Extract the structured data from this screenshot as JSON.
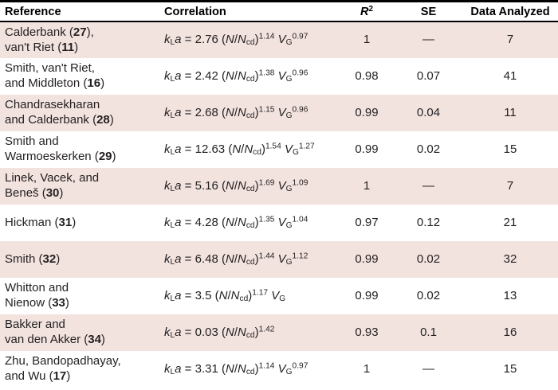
{
  "colors": {
    "row_shade": "#f2e3df",
    "rule": "#000000",
    "text": "#231f20"
  },
  "table": {
    "headers": {
      "reference": "Reference",
      "correlation": "Correlation",
      "r2": [
        [
          "i",
          "R"
        ],
        [
          "sup",
          "2"
        ]
      ],
      "se": "SE",
      "n": "Data Analyzed"
    },
    "rows": [
      {
        "reference": [
          [
            "t",
            "Calderbank ("
          ],
          [
            "b",
            "27"
          ],
          [
            "t",
            "),"
          ],
          [
            "br",
            ""
          ],
          [
            "t",
            "van't Riet ("
          ],
          [
            "b",
            "11"
          ],
          [
            "t",
            ")"
          ]
        ],
        "correlation": [
          [
            "i",
            "k"
          ],
          [
            "sub",
            "L"
          ],
          [
            "i",
            "a"
          ],
          [
            "t",
            " = 2.76 ("
          ],
          [
            "i",
            "N"
          ],
          [
            "t",
            "/"
          ],
          [
            "i",
            "N"
          ],
          [
            "sub",
            "cd"
          ],
          [
            "t",
            ")"
          ],
          [
            "sup",
            "1.14"
          ],
          [
            "t",
            " "
          ],
          [
            "i",
            "V"
          ],
          [
            "sub",
            "G"
          ],
          [
            "sup",
            "0.97"
          ]
        ],
        "r2": "1",
        "se": "—",
        "n": "7"
      },
      {
        "reference": [
          [
            "t",
            "Smith, van't Riet,"
          ],
          [
            "br",
            ""
          ],
          [
            "t",
            "and Middleton ("
          ],
          [
            "b",
            "16"
          ],
          [
            "t",
            ")"
          ]
        ],
        "correlation": [
          [
            "i",
            "k"
          ],
          [
            "sub",
            "L"
          ],
          [
            "i",
            "a"
          ],
          [
            "t",
            " = 2.42 ("
          ],
          [
            "i",
            "N"
          ],
          [
            "t",
            "/"
          ],
          [
            "i",
            "N"
          ],
          [
            "sub",
            "cd"
          ],
          [
            "t",
            ")"
          ],
          [
            "sup",
            "1.38"
          ],
          [
            "t",
            " "
          ],
          [
            "i",
            "V"
          ],
          [
            "sub",
            "G"
          ],
          [
            "sup",
            "0.96"
          ]
        ],
        "r2": "0.98",
        "se": "0.07",
        "n": "41"
      },
      {
        "reference": [
          [
            "t",
            "Chandrasekharan"
          ],
          [
            "br",
            ""
          ],
          [
            "t",
            "and Calderbank ("
          ],
          [
            "b",
            "28"
          ],
          [
            "t",
            ")"
          ]
        ],
        "correlation": [
          [
            "i",
            "k"
          ],
          [
            "sub",
            "L"
          ],
          [
            "i",
            "a"
          ],
          [
            "t",
            " = 2.68 ("
          ],
          [
            "i",
            "N"
          ],
          [
            "t",
            "/"
          ],
          [
            "i",
            "N"
          ],
          [
            "sub",
            "cd"
          ],
          [
            "t",
            ")"
          ],
          [
            "sup",
            "1.15"
          ],
          [
            "t",
            " "
          ],
          [
            "i",
            "V"
          ],
          [
            "sub",
            "G"
          ],
          [
            "sup",
            "0.96"
          ]
        ],
        "r2": "0.99",
        "se": "0.04",
        "n": "11"
      },
      {
        "reference": [
          [
            "t",
            "Smith and"
          ],
          [
            "br",
            ""
          ],
          [
            "t",
            "Warmoeskerken ("
          ],
          [
            "b",
            "29"
          ],
          [
            "t",
            ")"
          ]
        ],
        "correlation": [
          [
            "i",
            "k"
          ],
          [
            "sub",
            "L"
          ],
          [
            "i",
            "a"
          ],
          [
            "t",
            " = 12.63 ("
          ],
          [
            "i",
            "N"
          ],
          [
            "t",
            "/"
          ],
          [
            "i",
            "N"
          ],
          [
            "sub",
            "cd"
          ],
          [
            "t",
            ")"
          ],
          [
            "sup",
            "1.54"
          ],
          [
            "t",
            " "
          ],
          [
            "i",
            "V"
          ],
          [
            "sub",
            "G"
          ],
          [
            "sup",
            "1.27"
          ]
        ],
        "r2": "0.99",
        "se": "0.02",
        "n": "15"
      },
      {
        "reference": [
          [
            "t",
            "Linek, Vacek, and"
          ],
          [
            "br",
            ""
          ],
          [
            "t",
            "Beneš ("
          ],
          [
            "b",
            "30"
          ],
          [
            "t",
            ")"
          ]
        ],
        "correlation": [
          [
            "i",
            "k"
          ],
          [
            "sub",
            "L"
          ],
          [
            "i",
            "a"
          ],
          [
            "t",
            " = 5.16 ("
          ],
          [
            "i",
            "N"
          ],
          [
            "t",
            "/"
          ],
          [
            "i",
            "N"
          ],
          [
            "sub",
            "cd"
          ],
          [
            "t",
            ")"
          ],
          [
            "sup",
            "1.69"
          ],
          [
            "t",
            " "
          ],
          [
            "i",
            "V"
          ],
          [
            "sub",
            "G"
          ],
          [
            "sup",
            "1.09"
          ]
        ],
        "r2": "1",
        "se": "—",
        "n": "7"
      },
      {
        "reference": [
          [
            "t",
            "Hickman ("
          ],
          [
            "b",
            "31"
          ],
          [
            "t",
            ")"
          ]
        ],
        "correlation": [
          [
            "i",
            "k"
          ],
          [
            "sub",
            "L"
          ],
          [
            "i",
            "a"
          ],
          [
            "t",
            " = 4.28 ("
          ],
          [
            "i",
            "N"
          ],
          [
            "t",
            "/"
          ],
          [
            "i",
            "N"
          ],
          [
            "sub",
            "cd"
          ],
          [
            "t",
            ")"
          ],
          [
            "sup",
            "1.35"
          ],
          [
            "t",
            " "
          ],
          [
            "i",
            "V"
          ],
          [
            "sub",
            "G"
          ],
          [
            "sup",
            "1.04"
          ]
        ],
        "r2": "0.97",
        "se": "0.12",
        "n": "21"
      },
      {
        "reference": [
          [
            "t",
            "Smith ("
          ],
          [
            "b",
            "32"
          ],
          [
            "t",
            ")"
          ]
        ],
        "correlation": [
          [
            "i",
            "k"
          ],
          [
            "sub",
            "L"
          ],
          [
            "i",
            "a"
          ],
          [
            "t",
            " = 6.48 ("
          ],
          [
            "i",
            "N"
          ],
          [
            "t",
            "/"
          ],
          [
            "i",
            "N"
          ],
          [
            "sub",
            "cd"
          ],
          [
            "t",
            ")"
          ],
          [
            "sup",
            "1.44"
          ],
          [
            "t",
            " "
          ],
          [
            "i",
            "V"
          ],
          [
            "sub",
            "G"
          ],
          [
            "sup",
            "1.12"
          ]
        ],
        "r2": "0.99",
        "se": "0.02",
        "n": "32"
      },
      {
        "reference": [
          [
            "t",
            "Whitton and"
          ],
          [
            "br",
            ""
          ],
          [
            "t",
            "Nienow ("
          ],
          [
            "b",
            "33"
          ],
          [
            "t",
            ")"
          ]
        ],
        "correlation": [
          [
            "i",
            "k"
          ],
          [
            "sub",
            "L"
          ],
          [
            "i",
            "a"
          ],
          [
            "t",
            " = 3.5 ("
          ],
          [
            "i",
            "N"
          ],
          [
            "t",
            "/"
          ],
          [
            "i",
            "N"
          ],
          [
            "sub",
            "cd"
          ],
          [
            "t",
            ")"
          ],
          [
            "sup",
            "1.17"
          ],
          [
            "t",
            " "
          ],
          [
            "i",
            "V"
          ],
          [
            "sub",
            "G"
          ]
        ],
        "r2": "0.99",
        "se": "0.02",
        "n": "13"
      },
      {
        "reference": [
          [
            "t",
            "Bakker and"
          ],
          [
            "br",
            ""
          ],
          [
            "t",
            "van den Akker ("
          ],
          [
            "b",
            "34"
          ],
          [
            "t",
            ")"
          ]
        ],
        "correlation": [
          [
            "i",
            "k"
          ],
          [
            "sub",
            "L"
          ],
          [
            "i",
            "a"
          ],
          [
            "t",
            " = 0.03 ("
          ],
          [
            "i",
            "N"
          ],
          [
            "t",
            "/"
          ],
          [
            "i",
            "N"
          ],
          [
            "sub",
            "cd"
          ],
          [
            "t",
            ")"
          ],
          [
            "sup",
            "1.42"
          ]
        ],
        "r2": "0.93",
        "se": "0.1",
        "n": "16"
      },
      {
        "reference": [
          [
            "t",
            "Zhu, Bandopadhayay,"
          ],
          [
            "br",
            ""
          ],
          [
            "t",
            "and Wu ("
          ],
          [
            "b",
            "17"
          ],
          [
            "t",
            ")"
          ]
        ],
        "correlation": [
          [
            "i",
            "k"
          ],
          [
            "sub",
            "L"
          ],
          [
            "i",
            "a"
          ],
          [
            "t",
            " = 3.31 ("
          ],
          [
            "i",
            "N"
          ],
          [
            "t",
            "/"
          ],
          [
            "i",
            "N"
          ],
          [
            "sub",
            "cd"
          ],
          [
            "t",
            ")"
          ],
          [
            "sup",
            "1.14"
          ],
          [
            "t",
            " "
          ],
          [
            "i",
            "V"
          ],
          [
            "sub",
            "G"
          ],
          [
            "sup",
            "0.97"
          ]
        ],
        "r2": "1",
        "se": "—",
        "n": "15"
      }
    ]
  }
}
